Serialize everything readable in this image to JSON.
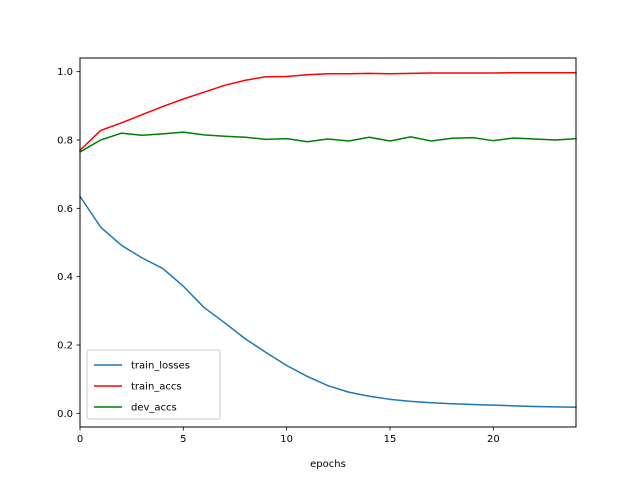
{
  "chart_data": {
    "type": "line",
    "title": "",
    "xlabel": "epochs",
    "ylabel": "",
    "xlim": [
      0,
      24
    ],
    "ylim": [
      -0.04,
      1.04
    ],
    "xticks": [
      0,
      5,
      10,
      15,
      20
    ],
    "yticks": [
      0.0,
      0.2,
      0.4,
      0.6,
      0.8,
      1.0
    ],
    "xtick_labels": [
      "0",
      "5",
      "10",
      "15",
      "20"
    ],
    "ytick_labels": [
      "0.0",
      "0.2",
      "0.4",
      "0.6",
      "0.8",
      "1.0"
    ],
    "grid": false,
    "legend_position": "lower-left",
    "x": [
      0,
      1,
      2,
      3,
      4,
      5,
      6,
      7,
      8,
      9,
      10,
      11,
      12,
      13,
      14,
      15,
      16,
      17,
      18,
      19,
      20,
      21,
      22,
      23,
      24
    ],
    "series": [
      {
        "name": "train_losses",
        "color": "#1f77b4",
        "values": [
          0.635,
          0.545,
          0.492,
          0.455,
          0.424,
          0.372,
          0.31,
          0.265,
          0.218,
          0.178,
          0.14,
          0.108,
          0.081,
          0.062,
          0.05,
          0.041,
          0.035,
          0.031,
          0.028,
          0.026,
          0.024,
          0.022,
          0.02,
          0.019,
          0.018
        ]
      },
      {
        "name": "train_accs",
        "color": "#ff0000",
        "values": [
          0.77,
          0.828,
          0.85,
          0.874,
          0.898,
          0.92,
          0.94,
          0.96,
          0.975,
          0.985,
          0.986,
          0.991,
          0.994,
          0.994,
          0.995,
          0.994,
          0.995,
          0.996,
          0.996,
          0.996,
          0.996,
          0.997,
          0.997,
          0.997,
          0.997
        ]
      },
      {
        "name": "dev_accs",
        "color": "#008000",
        "values": [
          0.765,
          0.8,
          0.82,
          0.814,
          0.818,
          0.823,
          0.815,
          0.811,
          0.808,
          0.802,
          0.804,
          0.795,
          0.803,
          0.797,
          0.808,
          0.797,
          0.809,
          0.797,
          0.805,
          0.807,
          0.798,
          0.806,
          0.803,
          0.8,
          0.804
        ]
      }
    ]
  }
}
